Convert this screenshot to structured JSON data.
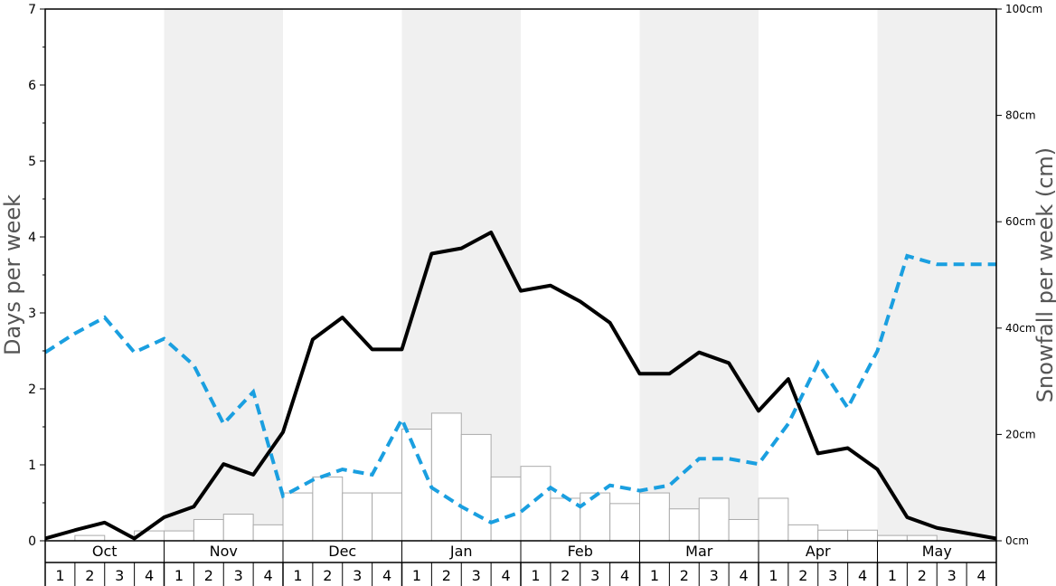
{
  "chart_data": {
    "type": "bar",
    "left_axis": {
      "label": "Days per week",
      "range": [
        0,
        7
      ],
      "major_ticks": [
        0,
        1,
        2,
        3,
        4,
        5,
        6,
        7
      ],
      "minor_step": 0.5
    },
    "right_axis": {
      "label": "Snowfall per week (cm)",
      "range": [
        0,
        100
      ],
      "ticks": [
        0,
        20,
        40,
        60,
        80,
        100
      ],
      "tick_labels": [
        "0cm",
        "20cm",
        "40cm",
        "60cm",
        "80cm",
        "100cm"
      ]
    },
    "months": [
      "Oct",
      "Nov",
      "Dec",
      "Jan",
      "Feb",
      "Mar",
      "Apr",
      "May"
    ],
    "week_labels": [
      "1",
      "2",
      "3",
      "4"
    ],
    "shaded_months": [
      "Nov",
      "Jan",
      "Mar",
      "May"
    ],
    "grid": false,
    "series": [
      {
        "style": "bar",
        "axis": "left",
        "color": "#ffffff",
        "edge_color": "#aaaaaa",
        "values": [
          0.0,
          0.07,
          0.0,
          0.13,
          0.13,
          0.28,
          0.35,
          0.21,
          0.63,
          0.84,
          0.63,
          0.63,
          1.47,
          1.68,
          1.4,
          0.84,
          0.98,
          0.56,
          0.63,
          0.49,
          0.63,
          0.42,
          0.56,
          0.28,
          0.56,
          0.21,
          0.14,
          0.14,
          0.07,
          0.07,
          0.0,
          0.0
        ]
      },
      {
        "style": "solid-line",
        "axis": "left",
        "color": "#000000",
        "values": [
          0.03,
          0.14,
          0.24,
          0.03,
          0.31,
          0.45,
          1.01,
          0.87,
          1.43,
          2.65,
          2.94,
          2.52,
          2.52,
          3.78,
          3.85,
          4.06,
          3.29,
          3.36,
          3.15,
          2.87,
          2.2,
          2.2,
          2.48,
          2.34,
          1.71,
          2.13,
          1.15,
          1.22,
          0.94,
          0.31,
          0.17,
          0.1
        ]
      },
      {
        "style": "dashed-line",
        "axis": "left",
        "color": "#1a9fe0",
        "values": [
          2.48,
          2.73,
          2.94,
          2.48,
          2.66,
          2.31,
          1.54,
          1.96,
          0.59,
          0.8,
          0.94,
          0.87,
          1.6,
          0.7,
          0.45,
          0.24,
          0.38,
          0.7,
          0.45,
          0.73,
          0.66,
          0.73,
          1.08,
          1.08,
          1.01,
          1.54,
          2.34,
          1.75,
          2.5,
          3.75,
          3.64,
          3.64
        ]
      }
    ],
    "line_end_value": 0.03
  }
}
